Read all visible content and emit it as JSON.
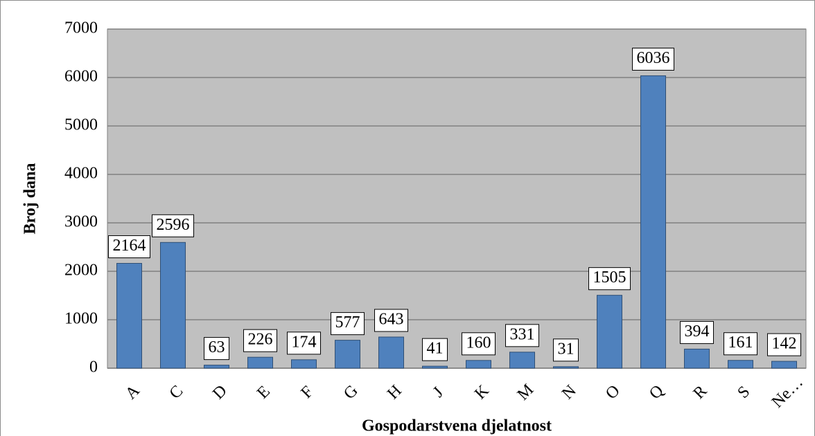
{
  "chart_data": {
    "type": "bar",
    "x_label": "Gospodarstvena djelatnost",
    "y_label": "Broj dana",
    "categories": [
      "A",
      "C",
      "D",
      "E",
      "F",
      "G",
      "H",
      "J",
      "K",
      "M",
      "N",
      "O",
      "Q",
      "R",
      "S",
      "Ne…"
    ],
    "values": [
      2164,
      2596,
      63,
      226,
      174,
      577,
      643,
      41,
      160,
      331,
      31,
      1505,
      6036,
      394,
      161,
      142
    ],
    "color": "#4f81bd",
    "ylim": [
      0,
      7000
    ],
    "yticks": [
      0,
      1000,
      2000,
      3000,
      4000,
      5000,
      6000,
      7000
    ],
    "grid": true
  }
}
